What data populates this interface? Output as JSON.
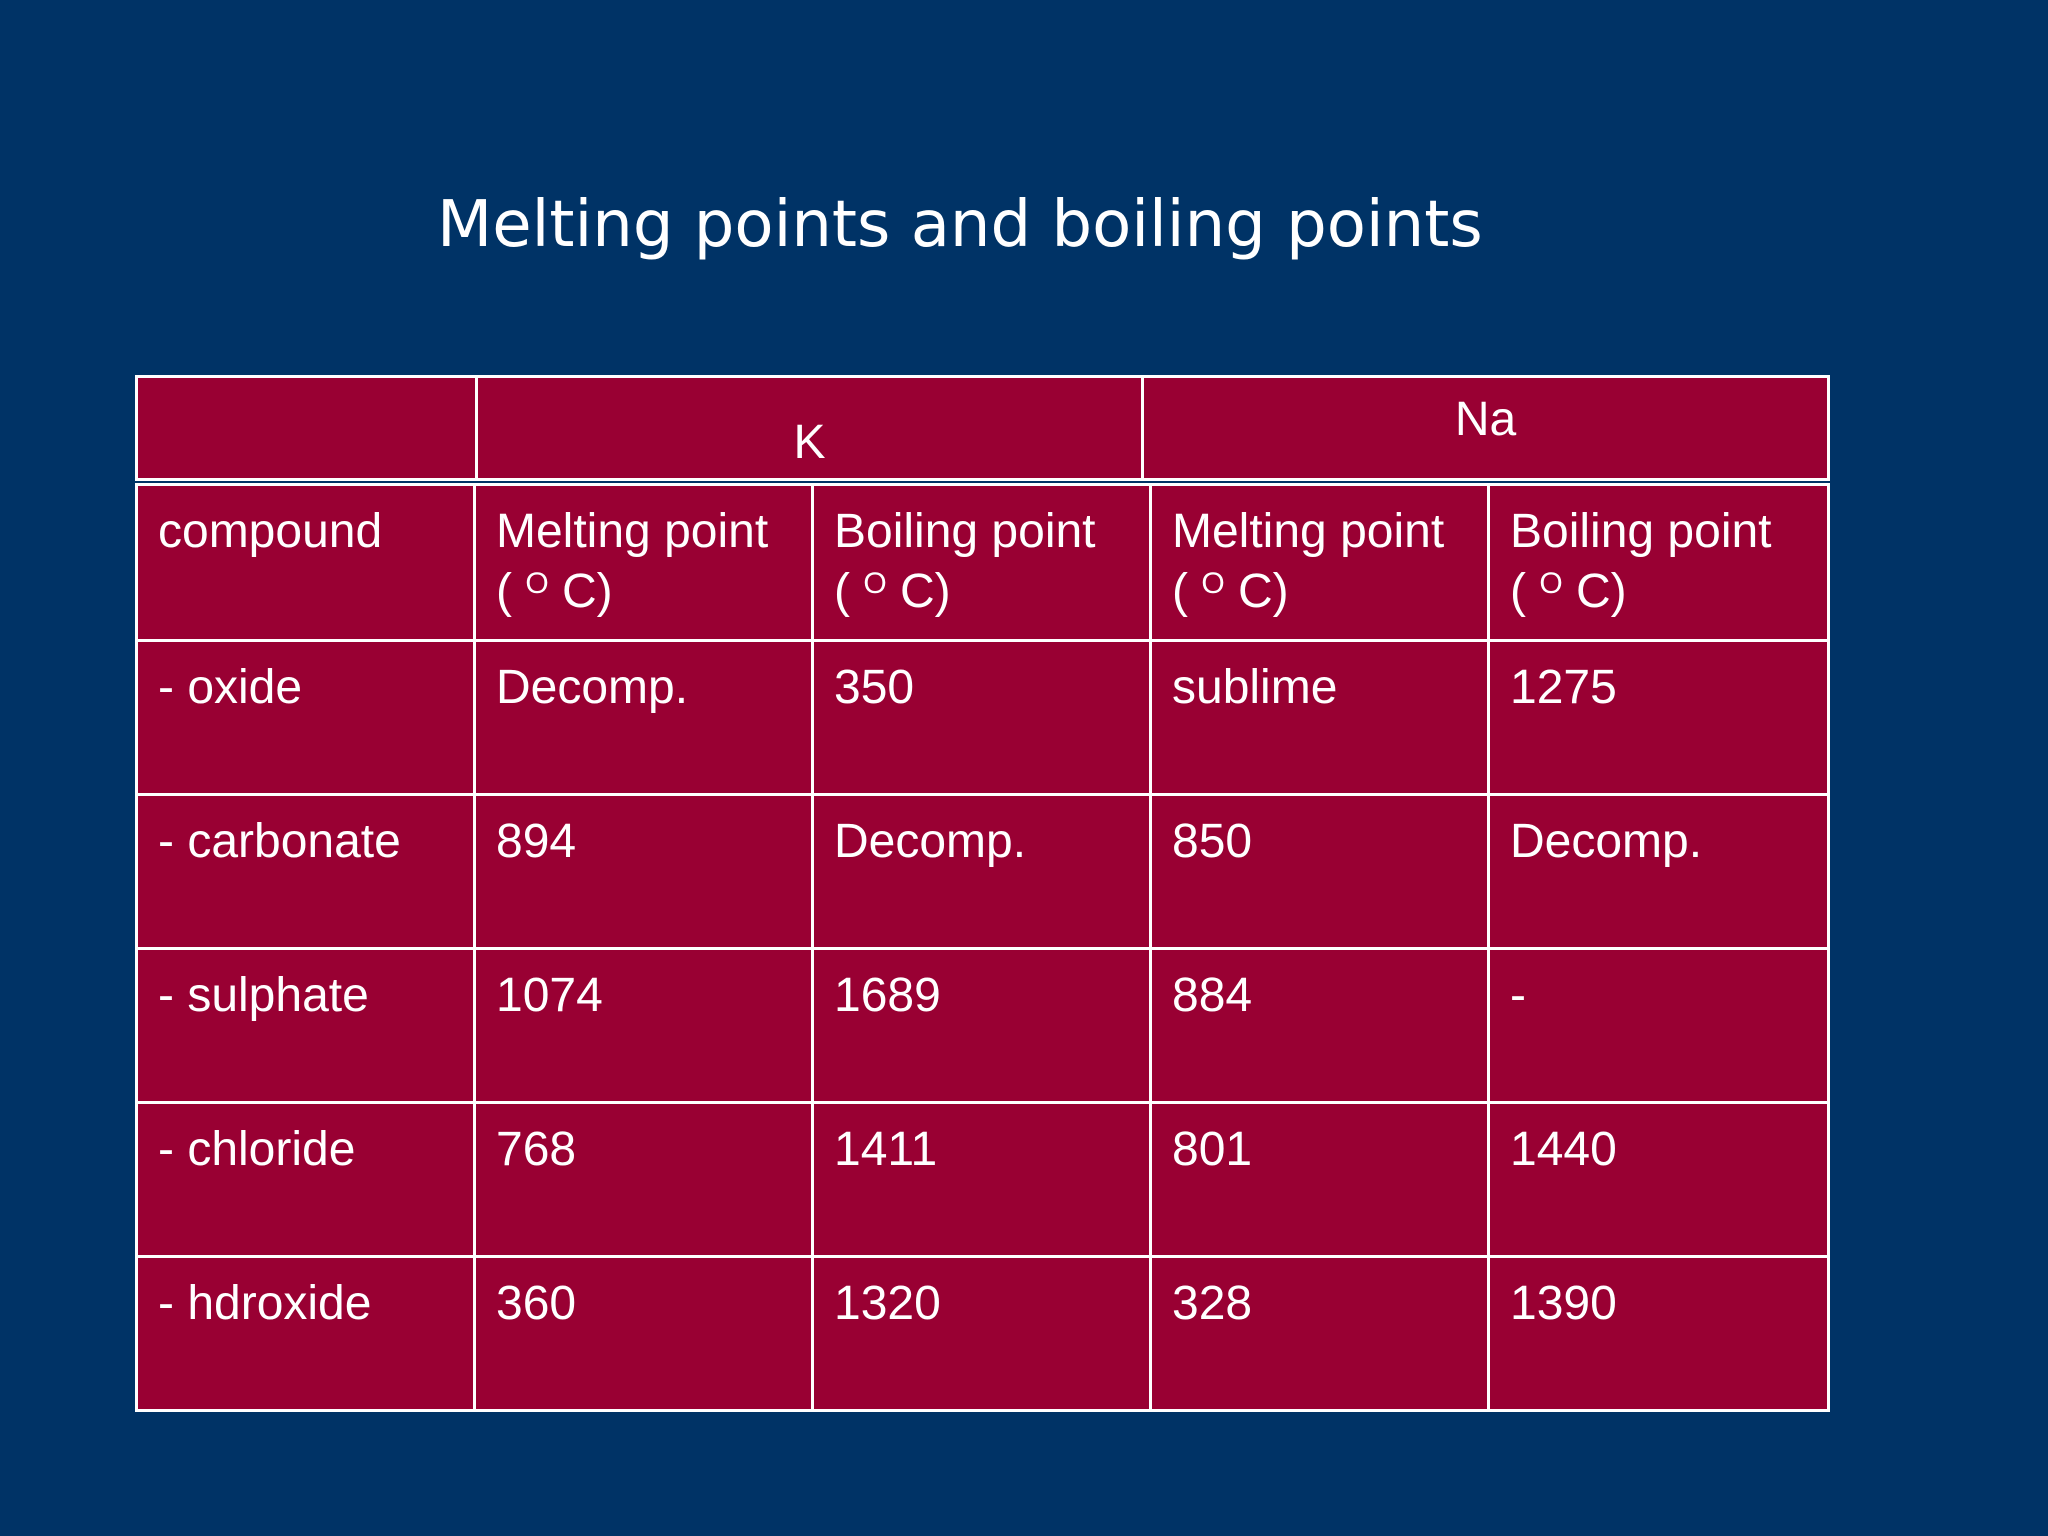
{
  "title": "Melting points and boiling points",
  "groups": {
    "k": "K",
    "na": "Na"
  },
  "table": {
    "headers": {
      "compound": "compound",
      "columns": [
        {
          "label": "Melting point",
          "unit_open": "(",
          "unit_sup": "O",
          "unit_close": "C)"
        },
        {
          "label": "Boiling point",
          "unit_open": "(",
          "unit_sup": "O",
          "unit_close": "C)"
        },
        {
          "label": "Melting point",
          "unit_open": "(",
          "unit_sup": "O",
          "unit_close": "C)"
        },
        {
          "label": "Boiling point",
          "unit_open": "(",
          "unit_sup": "O",
          "unit_close": "C)"
        }
      ]
    },
    "rows": [
      {
        "compound": "- oxide",
        "k_mp": "Decomp.",
        "k_bp": "350",
        "na_mp": "sublime",
        "na_bp": "1275"
      },
      {
        "compound": "- carbonate",
        "k_mp": "894",
        "k_bp": "Decomp.",
        "na_mp": "850",
        "na_bp": "Decomp."
      },
      {
        "compound": "- sulphate",
        "k_mp": "1074",
        "k_bp": "1689",
        "na_mp": "884",
        "na_bp": "-"
      },
      {
        "compound": "- chloride",
        "k_mp": "768",
        "k_bp": "1411",
        "na_mp": "801",
        "na_bp": "1440"
      },
      {
        "compound": "- hdroxide",
        "k_mp": "360",
        "k_bp": "1320",
        "na_mp": "328",
        "na_bp": "1390"
      }
    ]
  }
}
